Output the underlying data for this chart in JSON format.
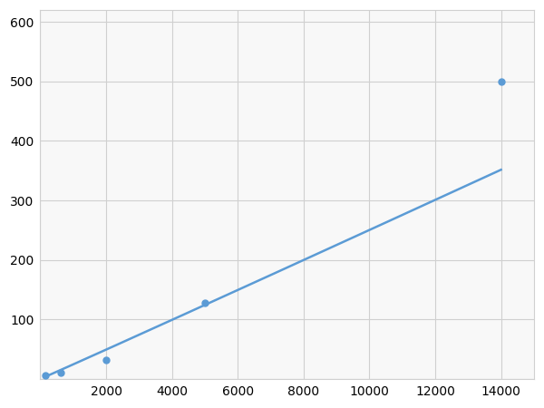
{
  "x": [
    156,
    625,
    2000,
    5000,
    14000
  ],
  "y": [
    6,
    10,
    32,
    128,
    500
  ],
  "line_color": "#5b9bd5",
  "marker_color": "#5b9bd5",
  "marker_size": 5,
  "line_width": 1.8,
  "xlim": [
    0,
    15000
  ],
  "ylim": [
    0,
    620
  ],
  "xticks": [
    0,
    2000,
    4000,
    6000,
    8000,
    10000,
    12000,
    14000
  ],
  "yticks": [
    0,
    100,
    200,
    300,
    400,
    500,
    600
  ],
  "grid_color": "#d0d0d0",
  "bg_color": "#f8f8f8",
  "fig_bg_color": "#ffffff",
  "tick_fontsize": 10
}
